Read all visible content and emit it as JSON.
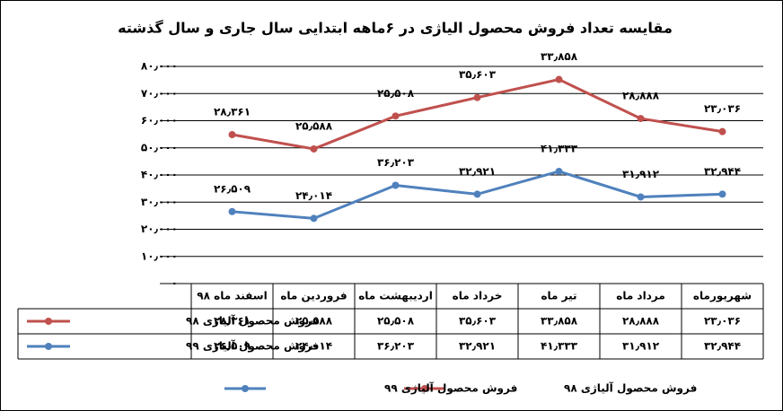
{
  "chart_data": {
    "type": "line",
    "stacked": true,
    "title": "مقایسه تعداد فروش محصول الیاژی در ۶ماهه ابتدایی سال جاری و سال گذشته",
    "categories": [
      "اسفند ماه ۹۸",
      "فروردین ماه",
      "اردیبهشت ماه",
      "خرداد ماه",
      "تیر ماه",
      "مرداد ماه",
      "شهریورماه"
    ],
    "series": [
      {
        "name": "فروش محصول آلیاژی ۹۸",
        "color": "#c0504d",
        "values": [
          28361,
          25588,
          25508,
          35603,
          33858,
          28888,
          23036
        ],
        "value_labels": [
          "۲۸٫۳۶۱",
          "۲۵٫۵۸۸",
          "۲۵٫۵۰۸",
          "۳۵٫۶۰۳",
          "۳۳٫۸۵۸",
          "۲۸٫۸۸۸",
          "۲۳٫۰۳۶"
        ]
      },
      {
        "name": "فروش محصول آلیاژی ۹۹",
        "color": "#4f81bd",
        "values": [
          26509,
          24014,
          36203,
          32921,
          41333,
          31912,
          32944
        ],
        "value_labels": [
          "۲۶٫۵۰۹",
          "۲۴٫۰۱۴",
          "۳۶٫۲۰۳",
          "۳۲٫۹۲۱",
          "۴۱٫۳۳۳",
          "۳۱٫۹۱۲",
          "۳۲٫۹۴۴"
        ]
      }
    ],
    "ylim": [
      0,
      80000
    ],
    "yticks": [
      {
        "value": 0,
        "label": "۰"
      },
      {
        "value": 10000,
        "label": "۱۰٫۰۰۰"
      },
      {
        "value": 20000,
        "label": "۲۰٫۰۰۰"
      },
      {
        "value": 30000,
        "label": "۳۰٫۰۰۰"
      },
      {
        "value": 40000,
        "label": "۴۰٫۰۰۰"
      },
      {
        "value": 50000,
        "label": "۵۰٫۰۰۰"
      },
      {
        "value": 60000,
        "label": "۶۰٫۰۰۰"
      },
      {
        "value": 70000,
        "label": "۷۰٫۰۰۰"
      },
      {
        "value": 80000,
        "label": "۸۰٫۰۰۰"
      }
    ],
    "grid": true,
    "legend": "bottom"
  }
}
